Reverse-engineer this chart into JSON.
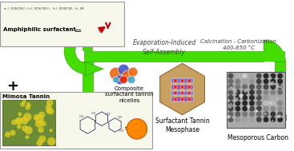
{
  "bg_color": "#ffffff",
  "arrow_color": "#44dd00",
  "arrow_edge": "#229900",
  "text_evaporation": "Evaporation-Induced\nSelf-Assembly",
  "text_calcination": "Calcination - Carbonization\n400-850 °C",
  "text_surfactant": "Amphiphilic surfactant",
  "text_mimosa": "Mimosa Tannin",
  "text_micelles": "Composite\nsurfactant tannin\nnicelles",
  "text_mesophase": "Surfactant Tannin\nMesophase",
  "text_carbon": "Mesoporous Carbon",
  "text_plus": "+",
  "text_eq": "=",
  "fig_width": 3.67,
  "fig_height": 1.89,
  "dpi": 100
}
